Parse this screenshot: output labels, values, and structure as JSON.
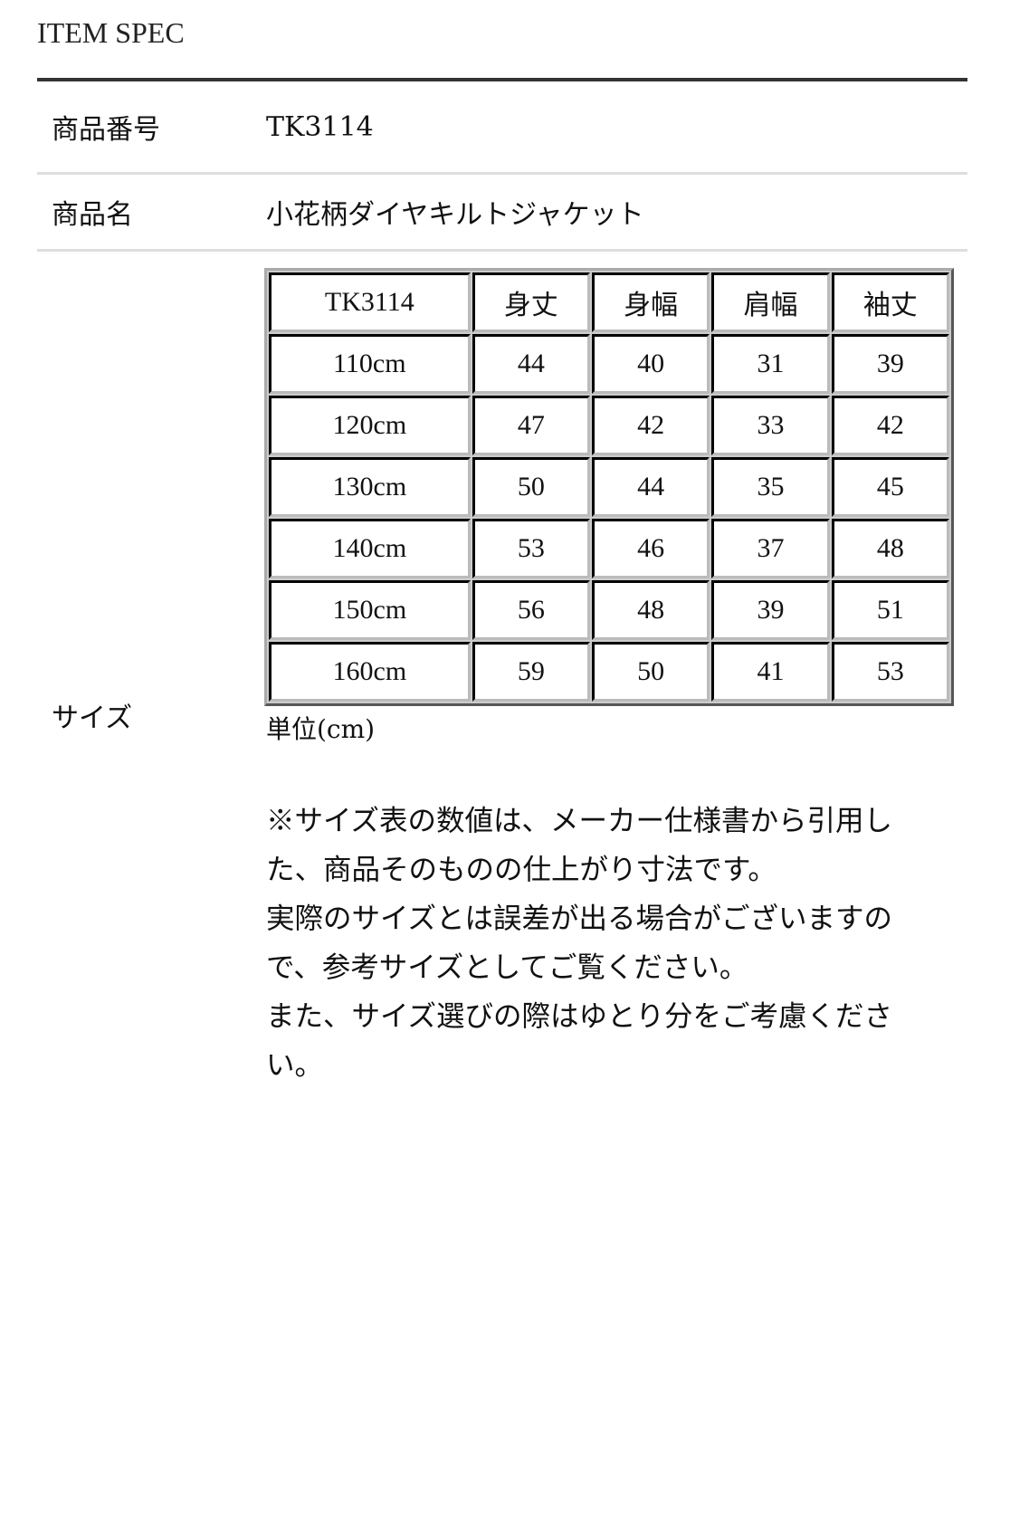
{
  "title": "ITEM SPEC",
  "rows": [
    {
      "label": "商品番号",
      "value": "TK3114"
    },
    {
      "label": "商品名",
      "value": "小花柄ダイヤキルトジャケット"
    },
    {
      "label": "サイズ"
    }
  ],
  "size_table": {
    "headers": [
      "TK3114",
      "身丈",
      "身幅",
      "肩幅",
      "袖丈"
    ],
    "rows": [
      [
        "110cm",
        "44",
        "40",
        "31",
        "39"
      ],
      [
        "120cm",
        "47",
        "42",
        "33",
        "42"
      ],
      [
        "130cm",
        "50",
        "44",
        "35",
        "45"
      ],
      [
        "140cm",
        "53",
        "46",
        "37",
        "48"
      ],
      [
        "150cm",
        "56",
        "48",
        "39",
        "51"
      ],
      [
        "160cm",
        "59",
        "50",
        "41",
        "53"
      ]
    ]
  },
  "unit": "単位(cm)",
  "notes": [
    "※サイズ表の数値は、メーカー仕様書から引用した、商品そのものの仕上がり寸法です。",
    "実際のサイズとは誤差が出る場合がございますので、参考サイズとしてご覧ください。",
    "また、サイズ選びの際はゆとり分をご考慮ください。"
  ]
}
